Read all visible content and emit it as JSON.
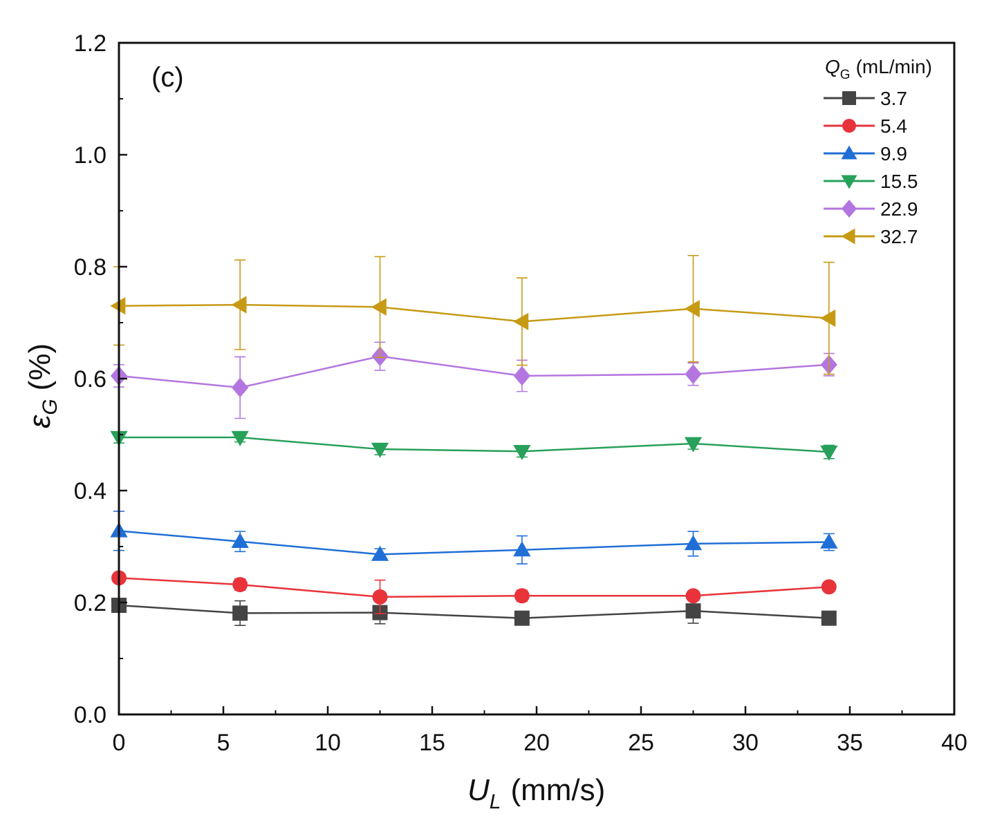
{
  "chart_data": {
    "type": "line",
    "panel_label": "(c)",
    "xlabel": {
      "symbol": "U",
      "subscript": "L",
      "unit": "(mm/s)"
    },
    "ylabel": {
      "symbol": "ε",
      "subscript": "G",
      "unit": "(%)"
    },
    "xlim": [
      0,
      40
    ],
    "ylim": [
      0.0,
      1.2
    ],
    "xticks": [
      0,
      5,
      10,
      15,
      20,
      25,
      30,
      35,
      40
    ],
    "yticks": [
      0.0,
      0.2,
      0.4,
      0.6,
      0.8,
      1.0,
      1.2
    ],
    "xtick_labels": [
      "0",
      "5",
      "10",
      "15",
      "20",
      "25",
      "30",
      "35",
      "40"
    ],
    "ytick_labels": [
      "0.0",
      "0.2",
      "0.4",
      "0.6",
      "0.8",
      "1.0",
      "1.2"
    ],
    "legend": {
      "title_symbol": "Q",
      "title_subscript": "G",
      "title_unit": "(mL/min)",
      "position": "top-right"
    },
    "x": [
      0,
      5.8,
      12.5,
      19.3,
      27.5,
      34.0
    ],
    "series": [
      {
        "name": "3.7",
        "color": "#444444",
        "marker": "square",
        "values": [
          0.195,
          0.181,
          0.182,
          0.172,
          0.185,
          0.172
        ],
        "errors": [
          0.012,
          0.022,
          0.02,
          0.008,
          0.022,
          0.01
        ]
      },
      {
        "name": "5.4",
        "color": "#e8333a",
        "marker": "circle",
        "values": [
          0.244,
          0.232,
          0.21,
          0.212,
          0.212,
          0.228
        ],
        "errors": [
          0.008,
          0.01,
          0.03,
          0.01,
          0.008,
          0.008
        ]
      },
      {
        "name": "9.9",
        "color": "#1f6fd6",
        "marker": "triangle-up",
        "values": [
          0.328,
          0.309,
          0.286,
          0.294,
          0.305,
          0.308
        ],
        "errors": [
          0.035,
          0.018,
          0.01,
          0.025,
          0.022,
          0.015
        ]
      },
      {
        "name": "15.5",
        "color": "#27a05a",
        "marker": "triangle-down",
        "values": [
          0.495,
          0.495,
          0.474,
          0.47,
          0.484,
          0.469
        ],
        "errors": [
          0.01,
          0.008,
          0.01,
          0.01,
          0.01,
          0.012
        ]
      },
      {
        "name": "22.9",
        "color": "#b376e0",
        "marker": "diamond",
        "values": [
          0.605,
          0.584,
          0.64,
          0.605,
          0.608,
          0.625
        ],
        "errors": [
          0.02,
          0.055,
          0.025,
          0.028,
          0.02,
          0.02
        ]
      },
      {
        "name": "32.7",
        "color": "#c79a14",
        "marker": "triangle-left",
        "values": [
          0.73,
          0.732,
          0.728,
          0.702,
          0.725,
          0.708
        ],
        "errors": [
          0.07,
          0.08,
          0.09,
          0.078,
          0.095,
          0.1
        ]
      }
    ]
  }
}
